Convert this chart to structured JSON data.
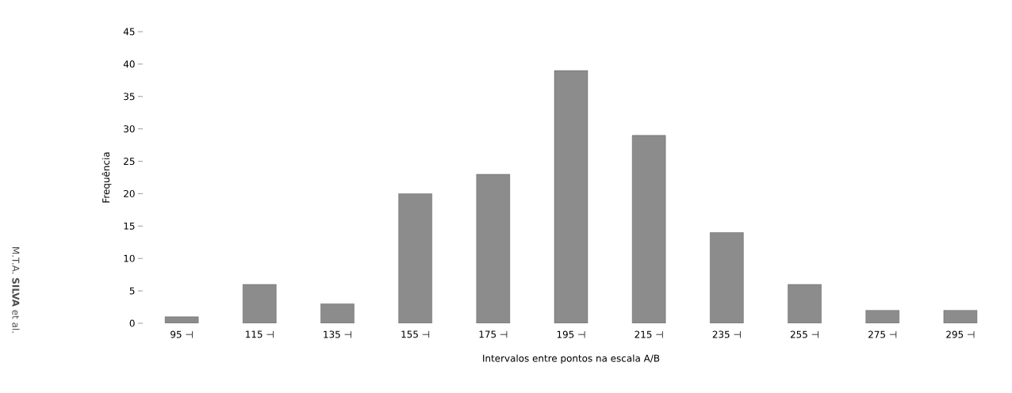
{
  "chart_data": {
    "type": "bar",
    "categories": [
      "95 ⊣",
      "115 ⊣",
      "135 ⊣",
      "155 ⊣",
      "175 ⊣",
      "195 ⊣",
      "215 ⊣",
      "235 ⊣",
      "255 ⊣",
      "275 ⊣",
      "295 ⊣"
    ],
    "values": [
      1,
      6,
      3,
      20,
      23,
      39,
      29,
      14,
      6,
      2,
      2
    ],
    "color": "#8c8c8c",
    "xlabel": "Intervalos entre pontos na escala A/B",
    "ylabel": "Frequência",
    "ylim": [
      0,
      45
    ],
    "yticks": [
      0,
      5,
      10,
      15,
      20,
      25,
      30,
      35,
      40,
      45
    ],
    "annotations": [
      "M.T.A. **SILVA** et al."
    ]
  }
}
